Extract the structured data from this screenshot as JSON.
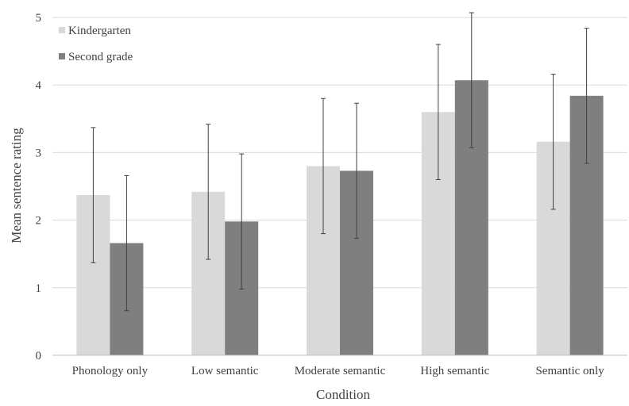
{
  "chart_data": {
    "type": "bar",
    "xlabel": "Condition",
    "ylabel": "Mean sentence rating",
    "ylim": [
      0,
      5
    ],
    "yticks": [
      0,
      1,
      2,
      3,
      4,
      5
    ],
    "grid": true,
    "legend_position": "top-left",
    "categories": [
      "Phonology only",
      "Low semantic",
      "Moderate semantic",
      "High semantic",
      "Semantic only"
    ],
    "series": [
      {
        "name": "Kindergarten",
        "color": "#d9d9d9",
        "values": [
          2.37,
          2.42,
          2.8,
          3.6,
          3.16
        ],
        "error": [
          1.0,
          1.0,
          1.0,
          1.0,
          1.0
        ]
      },
      {
        "name": "Second grade",
        "color": "#7f7f7f",
        "values": [
          1.66,
          1.98,
          2.73,
          4.07,
          3.84
        ],
        "error": [
          1.0,
          1.0,
          1.0,
          1.0,
          1.0
        ]
      }
    ]
  }
}
